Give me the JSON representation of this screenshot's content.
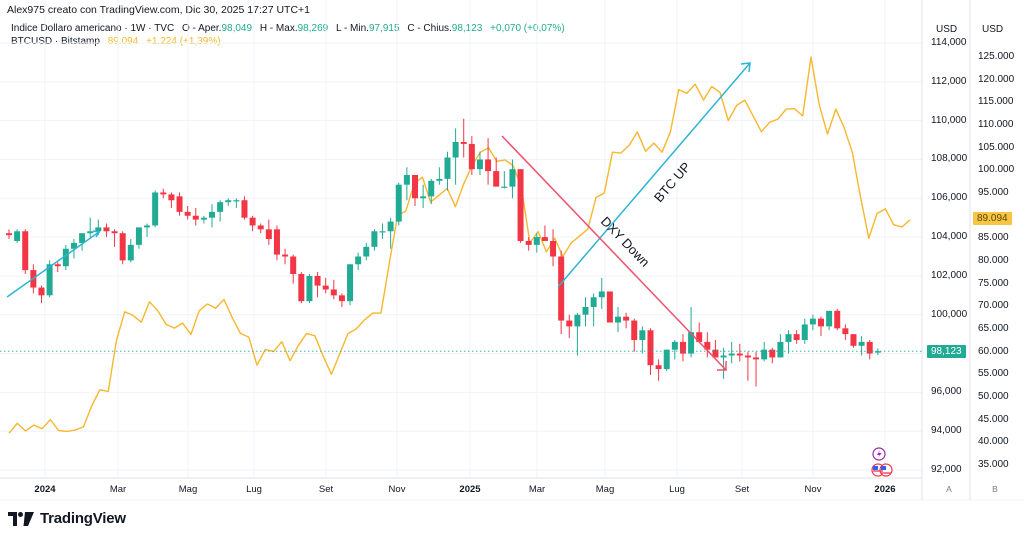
{
  "header": {
    "credit": "Alex975 creato con TradingView.com, Dic 30, 2025 17:27 UTC+1",
    "series1": {
      "name": "Indice Dollaro americano · 1W · TVC",
      "open_label": "O - Aper.",
      "open": "98,049",
      "high_label": "H - Max.",
      "high": "98,269",
      "low_label": "L - Min.",
      "low": "97,915",
      "close_label": "C - Chius.",
      "close": "98,123",
      "change": "+0,070 (+0,07%)"
    },
    "series2": {
      "name": "BTCUSD · Bitstamp",
      "last": "89.094",
      "change": "+1.224 (+1,39%)"
    }
  },
  "colors": {
    "up": "#22ab94",
    "down": "#f23645",
    "btc_line": "#f7b72e",
    "btc_trend": "#2bb5d6",
    "dxy_trend": "#f0506e",
    "grid": "#f0f3fa",
    "last_price_line": "#22ab94"
  },
  "axes": {
    "left_unit": "USD",
    "right_unit": "USD",
    "left_ticks": [
      "114,000",
      "112,000",
      "110,000",
      "108,000",
      "106,000",
      "104,000",
      "102,000",
      "100,000",
      "96,000",
      "94,000",
      "92,000"
    ],
    "right_ticks": [
      "125.000",
      "120.000",
      "115.000",
      "110.000",
      "105.000",
      "100.000",
      "95.000",
      "85.000",
      "80.000",
      "75.000",
      "70.000",
      "65.000",
      "60.000",
      "55.000",
      "50.000",
      "45.000",
      "40.000",
      "35.000"
    ],
    "dxy_last_tag": "98,123",
    "btc_last_tag": "89.094",
    "time_ticks": [
      {
        "label": "2024",
        "bold": true
      },
      {
        "label": "Mar"
      },
      {
        "label": "Mag"
      },
      {
        "label": "Lug"
      },
      {
        "label": "Set"
      },
      {
        "label": "Nov"
      },
      {
        "label": "2025",
        "bold": true
      },
      {
        "label": "Mar"
      },
      {
        "label": "Mag"
      },
      {
        "label": "Lug"
      },
      {
        "label": "Set"
      },
      {
        "label": "Nov"
      },
      {
        "label": "2026",
        "bold": true
      }
    ],
    "scale_buttons": [
      "A",
      "B"
    ]
  },
  "annotations": {
    "btc_up": "BTC UP",
    "dxy_down": "DXY Down"
  },
  "branding": {
    "logo_text": "TradingView"
  },
  "chart_data": {
    "type": "candlestick+line",
    "title": "Indice Dollaro americano (DXY) 1W vs BTCUSD Bitstamp",
    "xlabel": "",
    "ylabel_left": "USD (DXY)",
    "ylabel_right": "USD (BTC)",
    "ylim_left": [
      91500,
      115000
    ],
    "ylim_right": [
      33000,
      128000
    ],
    "grid": true,
    "legend_position": "top-left",
    "x_range": [
      "2023-12",
      "2025-12-30"
    ],
    "series": [
      {
        "name": "Indice Dollaro americano · 1W · TVC",
        "type": "candlestick",
        "axis": "left",
        "ohlc": [
          [
            104.2,
            104.4,
            103.9,
            104.1
          ],
          [
            103.8,
            104.4,
            103.7,
            104.3
          ],
          [
            104.3,
            104.4,
            102.1,
            102.3
          ],
          [
            102.3,
            102.6,
            101.1,
            101.4
          ],
          [
            101.4,
            101.5,
            100.6,
            101.0
          ],
          [
            101.0,
            102.8,
            100.9,
            102.6
          ],
          [
            102.6,
            102.7,
            102.2,
            102.5
          ],
          [
            102.5,
            103.6,
            102.3,
            103.4
          ],
          [
            103.4,
            103.9,
            102.9,
            103.7
          ],
          [
            103.7,
            104.2,
            103.3,
            104.2
          ],
          [
            104.2,
            105.0,
            104.0,
            104.3
          ],
          [
            104.3,
            104.9,
            104.1,
            104.5
          ],
          [
            104.5,
            104.7,
            104.0,
            104.3
          ],
          [
            104.3,
            104.4,
            103.5,
            104.2
          ],
          [
            104.2,
            104.3,
            102.6,
            102.8
          ],
          [
            102.8,
            103.9,
            102.7,
            103.6
          ],
          [
            103.6,
            104.5,
            103.4,
            104.5
          ],
          [
            104.5,
            104.7,
            104.0,
            104.6
          ],
          [
            104.6,
            106.4,
            104.5,
            106.3
          ],
          [
            106.3,
            106.5,
            106.0,
            106.2
          ],
          [
            106.2,
            106.3,
            105.5,
            105.9
          ],
          [
            106.1,
            106.3,
            105.1,
            105.3
          ],
          [
            105.3,
            105.6,
            104.9,
            105.1
          ],
          [
            105.1,
            105.5,
            104.6,
            104.9
          ],
          [
            104.9,
            105.1,
            104.7,
            105.0
          ],
          [
            105.0,
            105.7,
            104.5,
            105.3
          ],
          [
            105.3,
            105.9,
            104.8,
            105.8
          ],
          [
            105.8,
            106.0,
            105.6,
            105.9
          ],
          [
            105.9,
            106.0,
            105.5,
            105.9
          ],
          [
            105.9,
            106.1,
            104.9,
            105.0
          ],
          [
            105.0,
            105.1,
            104.3,
            104.6
          ],
          [
            104.6,
            104.7,
            104.2,
            104.4
          ],
          [
            104.4,
            104.9,
            103.6,
            103.9
          ],
          [
            104.4,
            104.6,
            102.8,
            103.1
          ],
          [
            103.1,
            103.4,
            102.6,
            103.0
          ],
          [
            103.0,
            103.1,
            101.6,
            102.1
          ],
          [
            102.1,
            102.2,
            100.6,
            100.7
          ],
          [
            100.7,
            102.1,
            100.6,
            102.0
          ],
          [
            102.0,
            102.2,
            100.9,
            101.5
          ],
          [
            101.5,
            101.9,
            101.1,
            101.3
          ],
          [
            101.3,
            101.8,
            100.8,
            101.0
          ],
          [
            101.0,
            101.1,
            100.4,
            100.7
          ],
          [
            100.7,
            102.6,
            100.5,
            102.6
          ],
          [
            102.6,
            103.2,
            102.3,
            103.0
          ],
          [
            103.0,
            103.7,
            102.8,
            103.5
          ],
          [
            103.5,
            104.4,
            103.3,
            104.3
          ],
          [
            104.3,
            104.7,
            103.9,
            104.3
          ],
          [
            104.3,
            105.0,
            103.4,
            104.8
          ],
          [
            104.8,
            106.8,
            104.6,
            106.7
          ],
          [
            106.7,
            107.6,
            105.9,
            107.2
          ],
          [
            107.2,
            107.2,
            105.6,
            106.0
          ],
          [
            106.0,
            106.7,
            105.5,
            106.1
          ],
          [
            106.1,
            107.0,
            105.7,
            106.9
          ],
          [
            106.9,
            107.6,
            106.7,
            107.0
          ],
          [
            107.0,
            108.4,
            106.4,
            108.1
          ],
          [
            108.1,
            109.6,
            106.7,
            108.9
          ],
          [
            108.9,
            110.1,
            108.1,
            108.8
          ],
          [
            108.8,
            109.2,
            107.2,
            107.5
          ],
          [
            107.5,
            108.4,
            107.2,
            108.0
          ],
          [
            108.0,
            109.1,
            106.7,
            107.4
          ],
          [
            107.4,
            108.1,
            106.8,
            106.6
          ],
          [
            106.6,
            107.4,
            106.5,
            106.6
          ],
          [
            106.6,
            108.0,
            106.0,
            107.5
          ],
          [
            107.5,
            107.5,
            103.7,
            103.8
          ],
          [
            103.8,
            104.0,
            103.3,
            103.6
          ],
          [
            103.6,
            104.2,
            103.2,
            104.0
          ],
          [
            104.0,
            104.6,
            103.9,
            103.8
          ],
          [
            103.8,
            104.4,
            102.5,
            103.0
          ],
          [
            103.0,
            103.3,
            99.0,
            99.7
          ],
          [
            99.7,
            100.0,
            98.8,
            99.4
          ],
          [
            99.4,
            100.1,
            97.9,
            100.0
          ],
          [
            100.0,
            100.9,
            99.4,
            100.4
          ],
          [
            100.4,
            101.1,
            99.4,
            100.9
          ],
          [
            100.9,
            101.9,
            100.3,
            101.2
          ],
          [
            101.2,
            101.2,
            99.6,
            99.6
          ],
          [
            99.6,
            100.4,
            99.1,
            99.9
          ],
          [
            99.9,
            100.1,
            99.3,
            99.7
          ],
          [
            99.7,
            99.8,
            98.1,
            98.7
          ],
          [
            98.7,
            99.4,
            98.0,
            99.2
          ],
          [
            99.2,
            99.3,
            96.9,
            97.4
          ],
          [
            97.4,
            97.7,
            96.6,
            97.2
          ],
          [
            97.2,
            98.2,
            97.1,
            98.2
          ],
          [
            98.2,
            98.7,
            97.7,
            98.6
          ],
          [
            98.6,
            99.0,
            97.6,
            98.0
          ],
          [
            98.0,
            100.4,
            97.8,
            99.1
          ],
          [
            99.1,
            99.6,
            98.6,
            98.6
          ],
          [
            98.6,
            99.1,
            97.8,
            98.2
          ],
          [
            98.2,
            98.7,
            97.8,
            97.8
          ],
          [
            97.8,
            98.3,
            96.7,
            97.9
          ],
          [
            97.9,
            98.6,
            97.5,
            98.0
          ],
          [
            98.0,
            98.5,
            97.6,
            97.9
          ],
          [
            97.9,
            98.1,
            96.6,
            97.8
          ],
          [
            97.8,
            98.1,
            96.3,
            97.7
          ],
          [
            97.7,
            98.6,
            97.6,
            98.2
          ],
          [
            98.2,
            98.3,
            97.5,
            97.8
          ],
          [
            97.8,
            99.0,
            97.8,
            98.6
          ],
          [
            98.6,
            99.2,
            98.0,
            99.0
          ],
          [
            99.0,
            99.2,
            98.5,
            98.7
          ],
          [
            98.7,
            99.8,
            98.5,
            99.5
          ],
          [
            99.5,
            100.0,
            99.2,
            99.8
          ],
          [
            99.8,
            99.9,
            98.9,
            99.4
          ],
          [
            99.4,
            100.2,
            99.2,
            100.2
          ],
          [
            100.2,
            100.3,
            99.2,
            99.3
          ],
          [
            99.3,
            99.5,
            98.7,
            99.0
          ],
          [
            99.0,
            99.0,
            98.3,
            98.4
          ],
          [
            98.4,
            98.9,
            97.9,
            98.6
          ],
          [
            98.6,
            98.7,
            97.7,
            98.0
          ],
          [
            98.05,
            98.27,
            97.92,
            98.12
          ]
        ]
      },
      {
        "name": "BTCUSD · Bitstamp",
        "type": "line",
        "axis": "right",
        "values": [
          42000,
          44200,
          42500,
          43800,
          43000,
          45000,
          42600,
          42400,
          42700,
          43400,
          48000,
          51600,
          51200,
          62500,
          68800,
          68000,
          66500,
          71000,
          69000,
          66000,
          65200,
          66300,
          63800,
          69000,
          70500,
          69600,
          71500,
          67500,
          64000,
          63200,
          57000,
          60500,
          60000,
          62200,
          58000,
          61400,
          64000,
          63500,
          59000,
          55000,
          59500,
          64000,
          65000,
          67000,
          68500,
          68500,
          79500,
          90000,
          91000,
          97000,
          98500,
          93000,
          94500,
          96000,
          92000,
          97000,
          101000,
          104000,
          105000,
          102000,
          102300,
          101000,
          96000,
          84000,
          86500,
          82000,
          85000,
          81000,
          84000,
          85500,
          87000,
          94000,
          95000,
          104000,
          103800,
          105500,
          108500,
          104200,
          106000,
          104000,
          108500,
          117800,
          117000,
          119000,
          115500,
          118500,
          117200,
          111000,
          114300,
          115500,
          112000,
          108500,
          110600,
          111300,
          113500,
          113600,
          112000,
          125000,
          114500,
          108000,
          113500,
          109500,
          104000,
          94000,
          85000,
          90500,
          91500,
          88000,
          87500,
          89094
        ]
      }
    ],
    "annotations": [
      {
        "type": "trendline",
        "label": "BTC UP",
        "color": "#2bb5d6",
        "from": [
          "2025-04-07",
          75000
        ],
        "to": [
          "2025-09-29",
          124000
        ]
      },
      {
        "type": "trendline",
        "label": "DXY Down",
        "color": "#f0506e",
        "from": [
          "2025-01-13",
          109200
        ],
        "to": [
          "2025-07-21",
          97300
        ]
      },
      {
        "type": "trendline",
        "label": "",
        "color": "#2bb5d6",
        "from": [
          "2023-12-25",
          101300
        ],
        "to": [
          "2024-03-25",
          104000
        ]
      }
    ],
    "last_values": {
      "DXY": 98.123,
      "BTCUSD": 89094
    }
  }
}
